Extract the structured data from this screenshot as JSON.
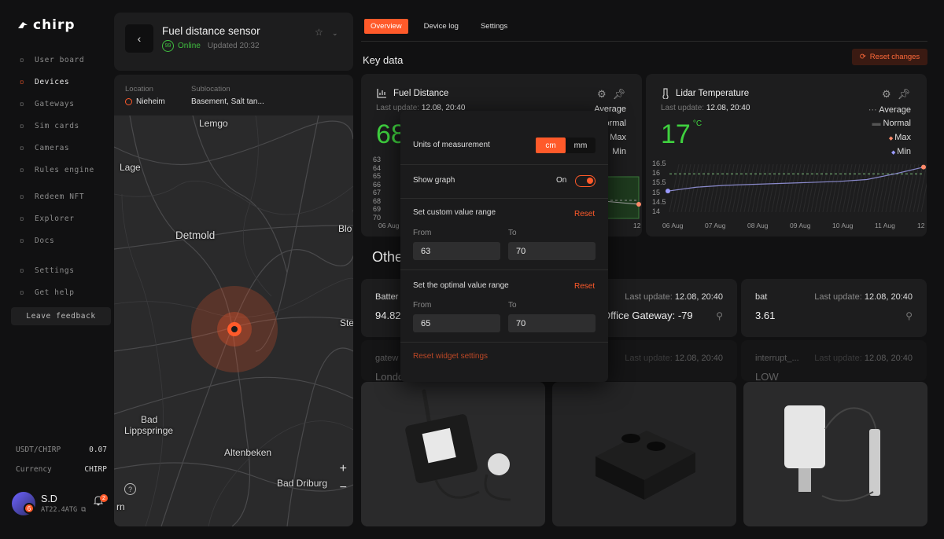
{
  "brand": {
    "name": "chirp"
  },
  "sidebar": {
    "items": [
      {
        "label": "User board",
        "icon": "grid-icon",
        "active": false
      },
      {
        "label": "Devices",
        "icon": "devices-icon",
        "active": true
      },
      {
        "label": "Gateways",
        "icon": "gateway-icon",
        "active": false
      },
      {
        "label": "Sim cards",
        "icon": "sim-icon",
        "active": false
      },
      {
        "label": "Cameras",
        "icon": "camera-icon",
        "active": false
      },
      {
        "label": "Rules engine",
        "icon": "rules-icon",
        "active": false
      }
    ],
    "items2": [
      {
        "label": "Redeem NFT",
        "icon": "nft-icon"
      },
      {
        "label": "Explorer",
        "icon": "map-icon"
      },
      {
        "label": "Docs",
        "icon": "book-icon"
      }
    ],
    "items3": [
      {
        "label": "Settings",
        "icon": "gear-icon"
      },
      {
        "label": "Get help",
        "icon": "help-icon"
      }
    ],
    "feedback": "Leave feedback",
    "price_label": "USDT/CHIRP",
    "price_value": "0.07",
    "currency_label": "Currency",
    "currency_value": "CHIRP",
    "user": {
      "name": "S.D",
      "id": "AT22.4ATG",
      "badge": "6",
      "notifications": "2"
    }
  },
  "device": {
    "title": "Fuel distance sensor",
    "battery": "99",
    "status": "Online",
    "updated": "Updated 20:32",
    "location_label": "Location",
    "location": "Nieheim",
    "sublocation_label": "Sublocation",
    "sublocation": "Basement, Salt tan..."
  },
  "map": {
    "cities": [
      "Lemgo",
      "Lage",
      "Detmold",
      "Blo",
      "Ste",
      "Bad",
      "Lippspringe",
      "Altenbeken",
      "Bad Driburg",
      "rn"
    ],
    "zoom_in": "+",
    "zoom_out": "−",
    "help": "?"
  },
  "tabs": [
    "Overview",
    "Device log",
    "Settings"
  ],
  "key_data": "Key data",
  "reset_changes": "Reset changes",
  "fuel": {
    "title": "Fuel Distance",
    "update_label": "Last update:",
    "update": "12.08, 20:40",
    "value": "68",
    "legend": [
      "Average",
      "Normal",
      "Max",
      "Min"
    ],
    "yticks": [
      "63",
      "64",
      "65",
      "66",
      "67",
      "68",
      "69",
      "70"
    ],
    "xticks": [
      "06 Aug",
      "12"
    ]
  },
  "lidar": {
    "title": "Lidar Temperature",
    "update_label": "Last update:",
    "update": "12.08, 20:40",
    "value": "17",
    "unit": "°C",
    "legend": [
      "Average",
      "Normal",
      "Max",
      "Min"
    ],
    "yticks": [
      "16.5",
      "16",
      "15.5",
      "15",
      "14.5",
      "14"
    ],
    "xticks": [
      "06 Aug",
      "07 Aug",
      "08 Aug",
      "09 Aug",
      "10 Aug",
      "11 Aug",
      "12"
    ],
    "series": [
      15.1,
      15.3,
      15.4,
      15.45,
      15.5,
      15.55,
      15.6,
      15.7,
      16.0,
      16.35
    ]
  },
  "other": "Othe",
  "small": [
    {
      "label": "Batter",
      "value": "94.82",
      "update": ""
    },
    {
      "label": "",
      "value": "Office Gateway: -79",
      "update": "12.08, 20:40",
      "update_label": "Last update:"
    },
    {
      "label": "bat",
      "value": "3.61",
      "update": "12.08, 20:40",
      "update_label": "Last update:"
    },
    {
      "label": "gatew",
      "value": "London",
      "update": ""
    },
    {
      "label": "",
      "value": "",
      "update": "12.08, 20:40",
      "update_label": "Last update:"
    },
    {
      "label": "interrupt_...",
      "value": "LOW",
      "update": "12.08, 20:40",
      "update_label": "Last update:"
    }
  ],
  "overlay": {
    "units_label": "Units of measurement",
    "unit_cm": "cm",
    "unit_mm": "mm",
    "graph_label": "Show graph",
    "graph_state": "On",
    "custom_label": "Set custom value range",
    "reset": "Reset",
    "from": "From",
    "to": "To",
    "custom_from": "63",
    "custom_to": "70",
    "optimal_label": "Set the optimal value range",
    "optimal_from": "65",
    "optimal_to": "70",
    "reset_widget": "Reset widget settings"
  },
  "colors": {
    "accent": "#ff5a2a",
    "green": "#3fd13f"
  }
}
